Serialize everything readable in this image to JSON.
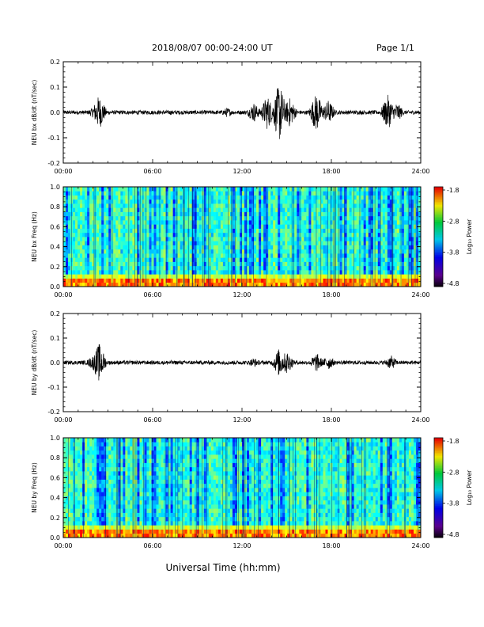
{
  "header": {
    "title": "2018/08/07  00:00-24:00 UT",
    "page": "Page 1/1"
  },
  "xaxis": {
    "label": "Universal Time (hh:mm)",
    "ticks": [
      "00:00",
      "06:00",
      "12:00",
      "18:00",
      "24:00"
    ],
    "range_hours": [
      0,
      24
    ]
  },
  "colorbar": {
    "label": "Log₁₀ Power",
    "ticks": [
      "-1.8",
      "-2.8",
      "-3.8",
      "-4.8"
    ],
    "range": [
      -4.8,
      -1.8
    ]
  },
  "chart_data": [
    {
      "type": "line",
      "ylabel": "NEU bx dB/dt (nT/sec)",
      "ylim": [
        -0.2,
        0.2
      ],
      "yticks": [
        "0.2",
        "0.1",
        "0.0",
        "-0.1",
        "-0.2"
      ],
      "baseline": 0.0,
      "series": [
        {
          "activity_hours": [
            2.0,
            2.4,
            7.2,
            11.0,
            12.8,
            13.7,
            14.5,
            15.2,
            17.0,
            17.8,
            21.8,
            22.4
          ],
          "envelope": [
            0.02,
            0.07,
            0.01,
            0.02,
            0.04,
            0.07,
            0.12,
            0.06,
            0.08,
            0.05,
            0.07,
            0.04
          ]
        }
      ]
    },
    {
      "type": "heatmap",
      "ylabel": "NEU bx Freq (Hz)",
      "ylim": [
        0.0,
        1.0
      ],
      "yticks": [
        "1.0",
        "0.8",
        "0.6",
        "0.4",
        "0.2",
        "0.0"
      ]
    },
    {
      "type": "line",
      "ylabel": "NEU by dB/dt (nT/sec)",
      "ylim": [
        -0.2,
        0.2
      ],
      "yticks": [
        "0.2",
        "0.1",
        "0.0",
        "-0.1",
        "-0.2"
      ],
      "baseline": 0.0,
      "series": [
        {
          "activity_hours": [
            2.0,
            2.4,
            7.2,
            12.8,
            14.5,
            15.0,
            17.0,
            17.8,
            22.0
          ],
          "envelope": [
            0.03,
            0.08,
            0.01,
            0.02,
            0.06,
            0.05,
            0.04,
            0.03,
            0.03
          ]
        }
      ]
    },
    {
      "type": "heatmap",
      "ylabel": "NEU by Freq (Hz)",
      "ylim": [
        0.0,
        1.0
      ],
      "yticks": [
        "1.0",
        "0.8",
        "0.6",
        "0.4",
        "0.2",
        "0.0"
      ]
    }
  ]
}
